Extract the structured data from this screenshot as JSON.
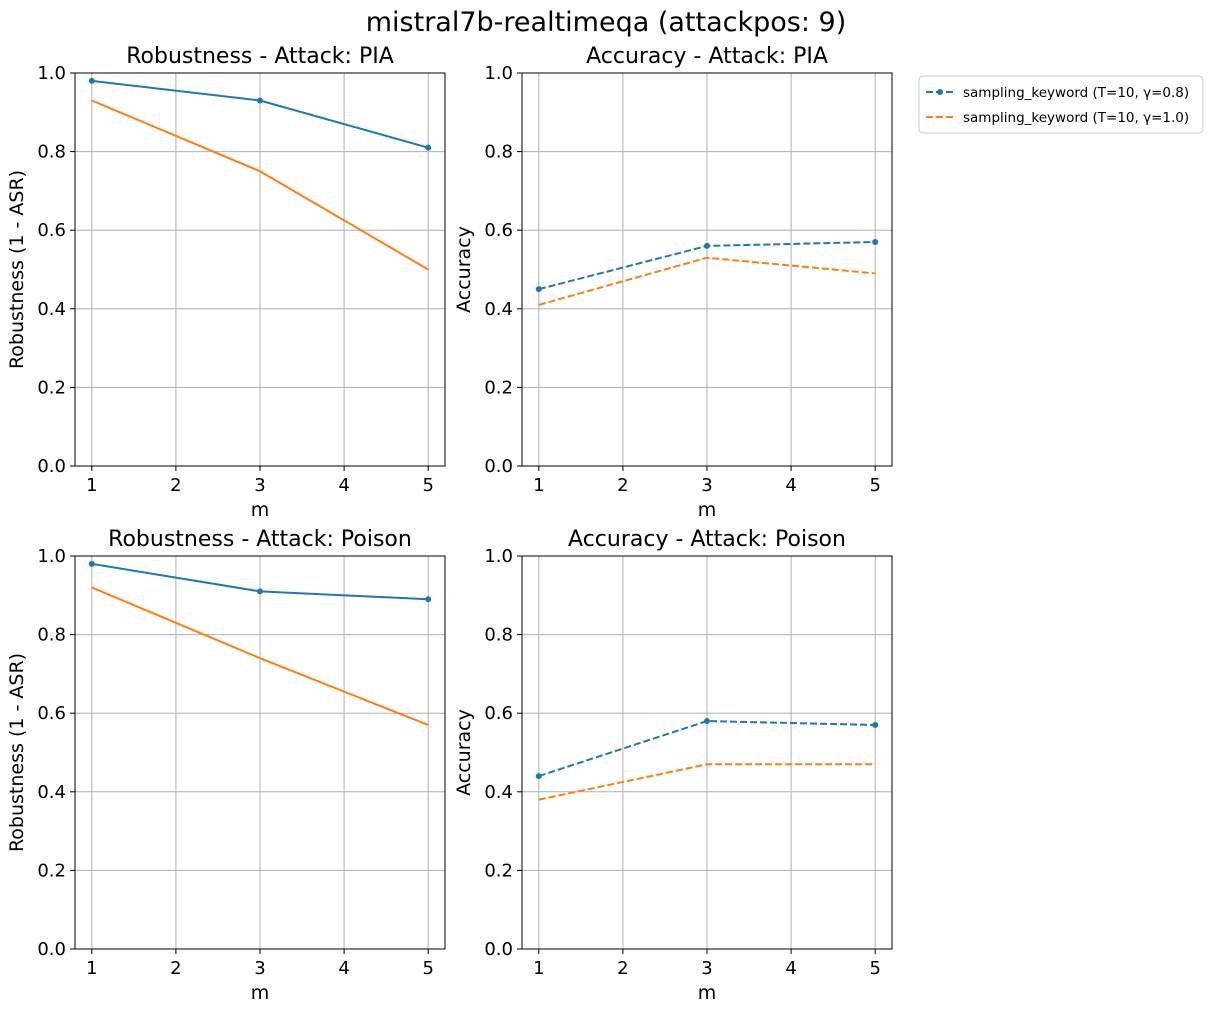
{
  "suptitle": "mistral7b-realtimeqa (attackpos: 9)",
  "legend": {
    "placement": "outside-right",
    "entries": [
      {
        "label": "sampling_keyword (T=10, γ=0.8)",
        "color": "#1f77b4",
        "marker": "dot"
      },
      {
        "label": "sampling_keyword (T=10, γ=1.0)",
        "color": "#ff7f0e",
        "marker": "none"
      }
    ]
  },
  "chart_data": [
    {
      "type": "line",
      "title": "Robustness - Attack: PIA",
      "xlabel": "m",
      "ylabel": "Robustness (1 - ASR)",
      "xlim": [
        0.8,
        5.2
      ],
      "ylim": [
        0.0,
        1.0
      ],
      "xticks": [
        "1",
        "2",
        "3",
        "4",
        "5"
      ],
      "yticks": [
        "0.0",
        "0.2",
        "0.4",
        "0.6",
        "0.8",
        "1.0"
      ],
      "grid": true,
      "line_style": "solid",
      "series": [
        {
          "x": [
            1,
            3,
            5
          ],
          "values": [
            0.98,
            0.93,
            0.81
          ],
          "color": "#1f77b4",
          "markers": true
        },
        {
          "x": [
            1,
            3,
            5
          ],
          "values": [
            0.93,
            0.75,
            0.5
          ],
          "color": "#ff7f0e",
          "markers": false
        }
      ]
    },
    {
      "type": "line",
      "title": "Accuracy - Attack: PIA",
      "xlabel": "m",
      "ylabel": "Accuracy",
      "xlim": [
        0.8,
        5.2
      ],
      "ylim": [
        0.0,
        1.0
      ],
      "xticks": [
        "1",
        "2",
        "3",
        "4",
        "5"
      ],
      "yticks": [
        "0.0",
        "0.2",
        "0.4",
        "0.6",
        "0.8",
        "1.0"
      ],
      "grid": true,
      "line_style": "dashed",
      "series": [
        {
          "x": [
            1,
            3,
            5
          ],
          "values": [
            0.45,
            0.56,
            0.57
          ],
          "color": "#1f77b4",
          "markers": true
        },
        {
          "x": [
            1,
            3,
            5
          ],
          "values": [
            0.41,
            0.53,
            0.49
          ],
          "color": "#ff7f0e",
          "markers": false
        }
      ]
    },
    {
      "type": "line",
      "title": "Robustness - Attack: Poison",
      "xlabel": "m",
      "ylabel": "Robustness (1 - ASR)",
      "xlim": [
        0.8,
        5.2
      ],
      "ylim": [
        0.0,
        1.0
      ],
      "xticks": [
        "1",
        "2",
        "3",
        "4",
        "5"
      ],
      "yticks": [
        "0.0",
        "0.2",
        "0.4",
        "0.6",
        "0.8",
        "1.0"
      ],
      "grid": true,
      "line_style": "solid",
      "series": [
        {
          "x": [
            1,
            3,
            5
          ],
          "values": [
            0.98,
            0.91,
            0.89
          ],
          "color": "#1f77b4",
          "markers": true
        },
        {
          "x": [
            1,
            3,
            5
          ],
          "values": [
            0.92,
            0.74,
            0.57
          ],
          "color": "#ff7f0e",
          "markers": false
        }
      ]
    },
    {
      "type": "line",
      "title": "Accuracy - Attack: Poison",
      "xlabel": "m",
      "ylabel": "Accuracy",
      "xlim": [
        0.8,
        5.2
      ],
      "ylim": [
        0.0,
        1.0
      ],
      "xticks": [
        "1",
        "2",
        "3",
        "4",
        "5"
      ],
      "yticks": [
        "0.0",
        "0.2",
        "0.4",
        "0.6",
        "0.8",
        "1.0"
      ],
      "grid": true,
      "line_style": "dashed",
      "series": [
        {
          "x": [
            1,
            3,
            5
          ],
          "values": [
            0.44,
            0.58,
            0.57
          ],
          "color": "#1f77b4",
          "markers": true
        },
        {
          "x": [
            1,
            3,
            5
          ],
          "values": [
            0.38,
            0.47,
            0.47
          ],
          "color": "#ff7f0e",
          "markers": false
        }
      ]
    }
  ]
}
